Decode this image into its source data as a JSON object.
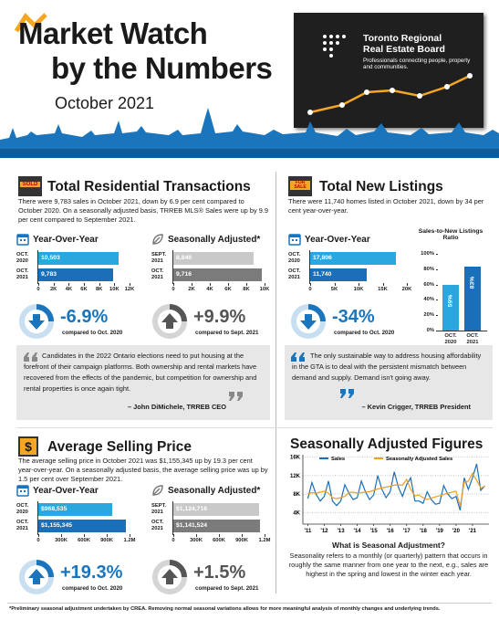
{
  "header": {
    "title_line1": "Market Watch",
    "title_line2": "by the Numbers",
    "date": "October 2021",
    "org_name": "Toronto Regional Real Estate Board",
    "org_tagline": "Professionals connecting people, property and communities."
  },
  "transactions": {
    "icon_label": "SOLD",
    "title": "Total Residential Transactions",
    "text": "There were 9,783 sales in October 2021, down by 6.9 per cent compared to October 2020. On a seasonally adjusted basis, TRREB MLS® Sales were up by 9.9 per cent compared to September 2021.",
    "stats": [
      {
        "value": "-6.9%",
        "note": "compared to Oct. 2020"
      },
      {
        "value": "+9.9%",
        "note": "compared to Sept. 2021"
      }
    ],
    "quote": "Candidates in the 2022 Ontario elections need to put housing at the forefront of their campaign platforms. Both ownership and rental markets have recovered from the effects of the pandemic, but competition for ownership and rental properties is once again tight.",
    "quote_author": "– John DiMichele, TRREB CEO"
  },
  "listings": {
    "icon_label": "FOR SALE",
    "title": "Total New Listings",
    "text": "There were 11,740 homes listed in October 2021, down by 34 per cent year-over-year.",
    "stats": [
      {
        "value": "-34%",
        "note": "compared to Oct. 2020"
      }
    ],
    "quote": "The only sustainable way to address housing affordability in the GTA is to deal with the persistent mismatch between demand and supply. Demand isn't going away.",
    "quote_author": "– Kevin Crigger, TRREB President"
  },
  "price": {
    "icon_label": "$",
    "title": "Average Selling Price",
    "text": "The average selling price in October 2021 was $1,155,345 up by 19.3 per cent year-over-year. On a seasonally adjusted basis, the average selling price was up by 1.5 per cent over September 2021.",
    "stats": [
      {
        "value": "+19.3%",
        "note": "compared to Oct. 2020"
      },
      {
        "value": "+1.5%",
        "note": "compared to Sept. 2021"
      }
    ]
  },
  "seasonal": {
    "question": "What is Seasonal Adjustment?",
    "text": "Seasonality refers to a monthly (or quarterly) pattern that occurs in roughly the same manner from one year to the next, e.g., sales are highest in the spring and lowest in the winter each year."
  },
  "footnote": "*Preliminary seasonal adjustment undertaken by CREA. Removing normal seasonal variations allows for more meaningful analysis of monthly changes and underlying trends.",
  "chart_data": [
    {
      "type": "hbar",
      "title": "Year-Over-Year",
      "categories": [
        "OCT.\n2020",
        "OCT.\n2021"
      ],
      "values": [
        10503,
        9783
      ],
      "value_labels": [
        "10,503",
        "9,783"
      ],
      "colors": [
        "#29a8e0",
        "#1b6fb8"
      ],
      "xlim": [
        0,
        12000
      ],
      "xticks": [
        0,
        {
          "value": 2000,
          "label": "2K"
        },
        {
          "value": 4000,
          "label": "4K"
        },
        {
          "value": 6000,
          "label": "6K"
        },
        {
          "value": 8000,
          "label": "8K"
        },
        {
          "value": 10000,
          "label": "10K"
        },
        {
          "value": 12000,
          "label": "12K"
        }
      ]
    },
    {
      "type": "hbar",
      "title": "Seasonally Adjusted*",
      "categories": [
        "SEPT.\n2021",
        "OCT.\n2021"
      ],
      "values": [
        8840,
        9716
      ],
      "value_labels": [
        "8,840",
        "9,716"
      ],
      "colors": [
        "#c9c9c9",
        "#7b7b7b"
      ],
      "xlim": [
        0,
        10000
      ],
      "xticks": [
        0,
        {
          "value": 2000,
          "label": "2K"
        },
        {
          "value": 4000,
          "label": "4K"
        },
        {
          "value": 6000,
          "label": "6K"
        },
        {
          "value": 8000,
          "label": "8K"
        },
        {
          "value": 10000,
          "label": "10K"
        }
      ]
    },
    {
      "type": "hbar",
      "title": "Year-Over-Year",
      "categories": [
        "OCT.\n2020",
        "OCT.\n2021"
      ],
      "values": [
        17806,
        11740
      ],
      "value_labels": [
        "17,806",
        "11,740"
      ],
      "colors": [
        "#29a8e0",
        "#1b6fb8"
      ],
      "xlim": [
        0,
        20000
      ],
      "xticks": [
        0,
        {
          "value": 5000,
          "label": "5K"
        },
        {
          "value": 10000,
          "label": "10K"
        },
        {
          "value": 15000,
          "label": "15K"
        },
        {
          "value": 20000,
          "label": "20K"
        }
      ]
    },
    {
      "type": "vbar",
      "title": "Sales-to-New Listings Ratio",
      "categories": [
        "OCT.\n2020",
        "OCT.\n2021"
      ],
      "values": [
        59,
        83
      ],
      "value_labels": [
        "59%",
        "83%"
      ],
      "colors": [
        "#29a8e0",
        "#1b6fb8"
      ],
      "ylim": [
        0,
        100
      ],
      "yticks": [
        {
          "value": 0,
          "label": "0%"
        },
        {
          "value": 20,
          "label": "20%"
        },
        {
          "value": 40,
          "label": "40%"
        },
        {
          "value": 60,
          "label": "60%"
        },
        {
          "value": 80,
          "label": "80%"
        },
        {
          "value": 100,
          "label": "100%"
        }
      ]
    },
    {
      "type": "hbar",
      "title": "Year-Over-Year",
      "categories": [
        "OCT.\n2020",
        "OCT.\n2021"
      ],
      "values": [
        968535,
        1155345
      ],
      "value_labels": [
        "$968,535",
        "$1,155,345"
      ],
      "colors": [
        "#29a8e0",
        "#1b6fb8"
      ],
      "xlim": [
        0,
        1200000
      ],
      "xticks": [
        0,
        {
          "value": 300000,
          "label": "300K"
        },
        {
          "value": 600000,
          "label": "600K"
        },
        {
          "value": 900000,
          "label": "900K"
        },
        {
          "value": 1200000,
          "label": "1.2M"
        }
      ]
    },
    {
      "type": "hbar",
      "title": "Seasonally Adjusted*",
      "categories": [
        "SEPT.\n2021",
        "OCT.\n2021"
      ],
      "values": [
        1124716,
        1141524
      ],
      "value_labels": [
        "$1,124,716",
        "$1,141,524"
      ],
      "colors": [
        "#c9c9c9",
        "#7b7b7b"
      ],
      "xlim": [
        0,
        1200000
      ],
      "xticks": [
        0,
        {
          "value": 300000,
          "label": "300K"
        },
        {
          "value": 600000,
          "label": "600K"
        },
        {
          "value": 900000,
          "label": "900K"
        },
        {
          "value": 1200000,
          "label": "1.2M"
        }
      ]
    },
    {
      "type": "line",
      "title": "Seasonally Adjusted Figures",
      "x": [
        2011,
        2011.25,
        2011.5,
        2011.75,
        2012,
        2012.25,
        2012.5,
        2012.75,
        2013,
        2013.25,
        2013.5,
        2013.75,
        2014,
        2014.25,
        2014.5,
        2014.75,
        2015,
        2015.25,
        2015.5,
        2015.75,
        2016,
        2016.25,
        2016.5,
        2016.75,
        2017,
        2017.25,
        2017.5,
        2017.75,
        2018,
        2018.25,
        2018.5,
        2018.75,
        2019,
        2019.25,
        2019.5,
        2019.75,
        2020,
        2020.25,
        2020.5,
        2020.75,
        2021,
        2021.25,
        2021.5,
        2021.75
      ],
      "series": [
        {
          "name": "Sales",
          "color": "#1b6fb8",
          "values": [
            7000,
            10500,
            8000,
            6500,
            7500,
            10800,
            6500,
            5500,
            6500,
            10000,
            8200,
            6800,
            7200,
            10800,
            8500,
            6800,
            7800,
            12000,
            9000,
            7200,
            8500,
            12800,
            9500,
            7500,
            10000,
            11500,
            6500,
            6500,
            6000,
            8500,
            6800,
            5800,
            6000,
            9800,
            8000,
            7000,
            7500,
            4500,
            11500,
            9000,
            11500,
            14500,
            8800,
            9783
          ]
        },
        {
          "name": "Seasonally Adjusted Sales",
          "color": "#f0a020",
          "values": [
            8000,
            8300,
            8200,
            8400,
            8600,
            8200,
            7200,
            7000,
            7200,
            7500,
            8300,
            8400,
            8200,
            8300,
            8400,
            8500,
            8800,
            9100,
            9300,
            9500,
            9700,
            9900,
            10000,
            9900,
            11200,
            9000,
            7600,
            7800,
            7200,
            6800,
            7100,
            7400,
            7600,
            7900,
            8200,
            8400,
            8600,
            5400,
            10500,
            10800,
            12500,
            11000,
            9300,
            9716
          ]
        }
      ],
      "xlim": [
        2010.7,
        2022
      ],
      "xticks": [
        {
          "value": 2011,
          "label": "'11"
        },
        {
          "value": 2012,
          "label": "'12"
        },
        {
          "value": 2013,
          "label": "'13"
        },
        {
          "value": 2014,
          "label": "'14"
        },
        {
          "value": 2015,
          "label": "'15"
        },
        {
          "value": 2016,
          "label": "'16"
        },
        {
          "value": 2017,
          "label": "'17"
        },
        {
          "value": 2018,
          "label": "'18"
        },
        {
          "value": 2019,
          "label": "'19"
        },
        {
          "value": 2020,
          "label": "'20"
        },
        {
          "value": 2021,
          "label": "'21"
        }
      ],
      "ylim": [
        1500,
        16500
      ],
      "yticks": [
        {
          "value": 4000,
          "label": "4K"
        },
        {
          "value": 8000,
          "label": "8K"
        },
        {
          "value": 12000,
          "label": "12K"
        },
        {
          "value": 16000,
          "label": "16K"
        }
      ],
      "grid": true
    }
  ]
}
